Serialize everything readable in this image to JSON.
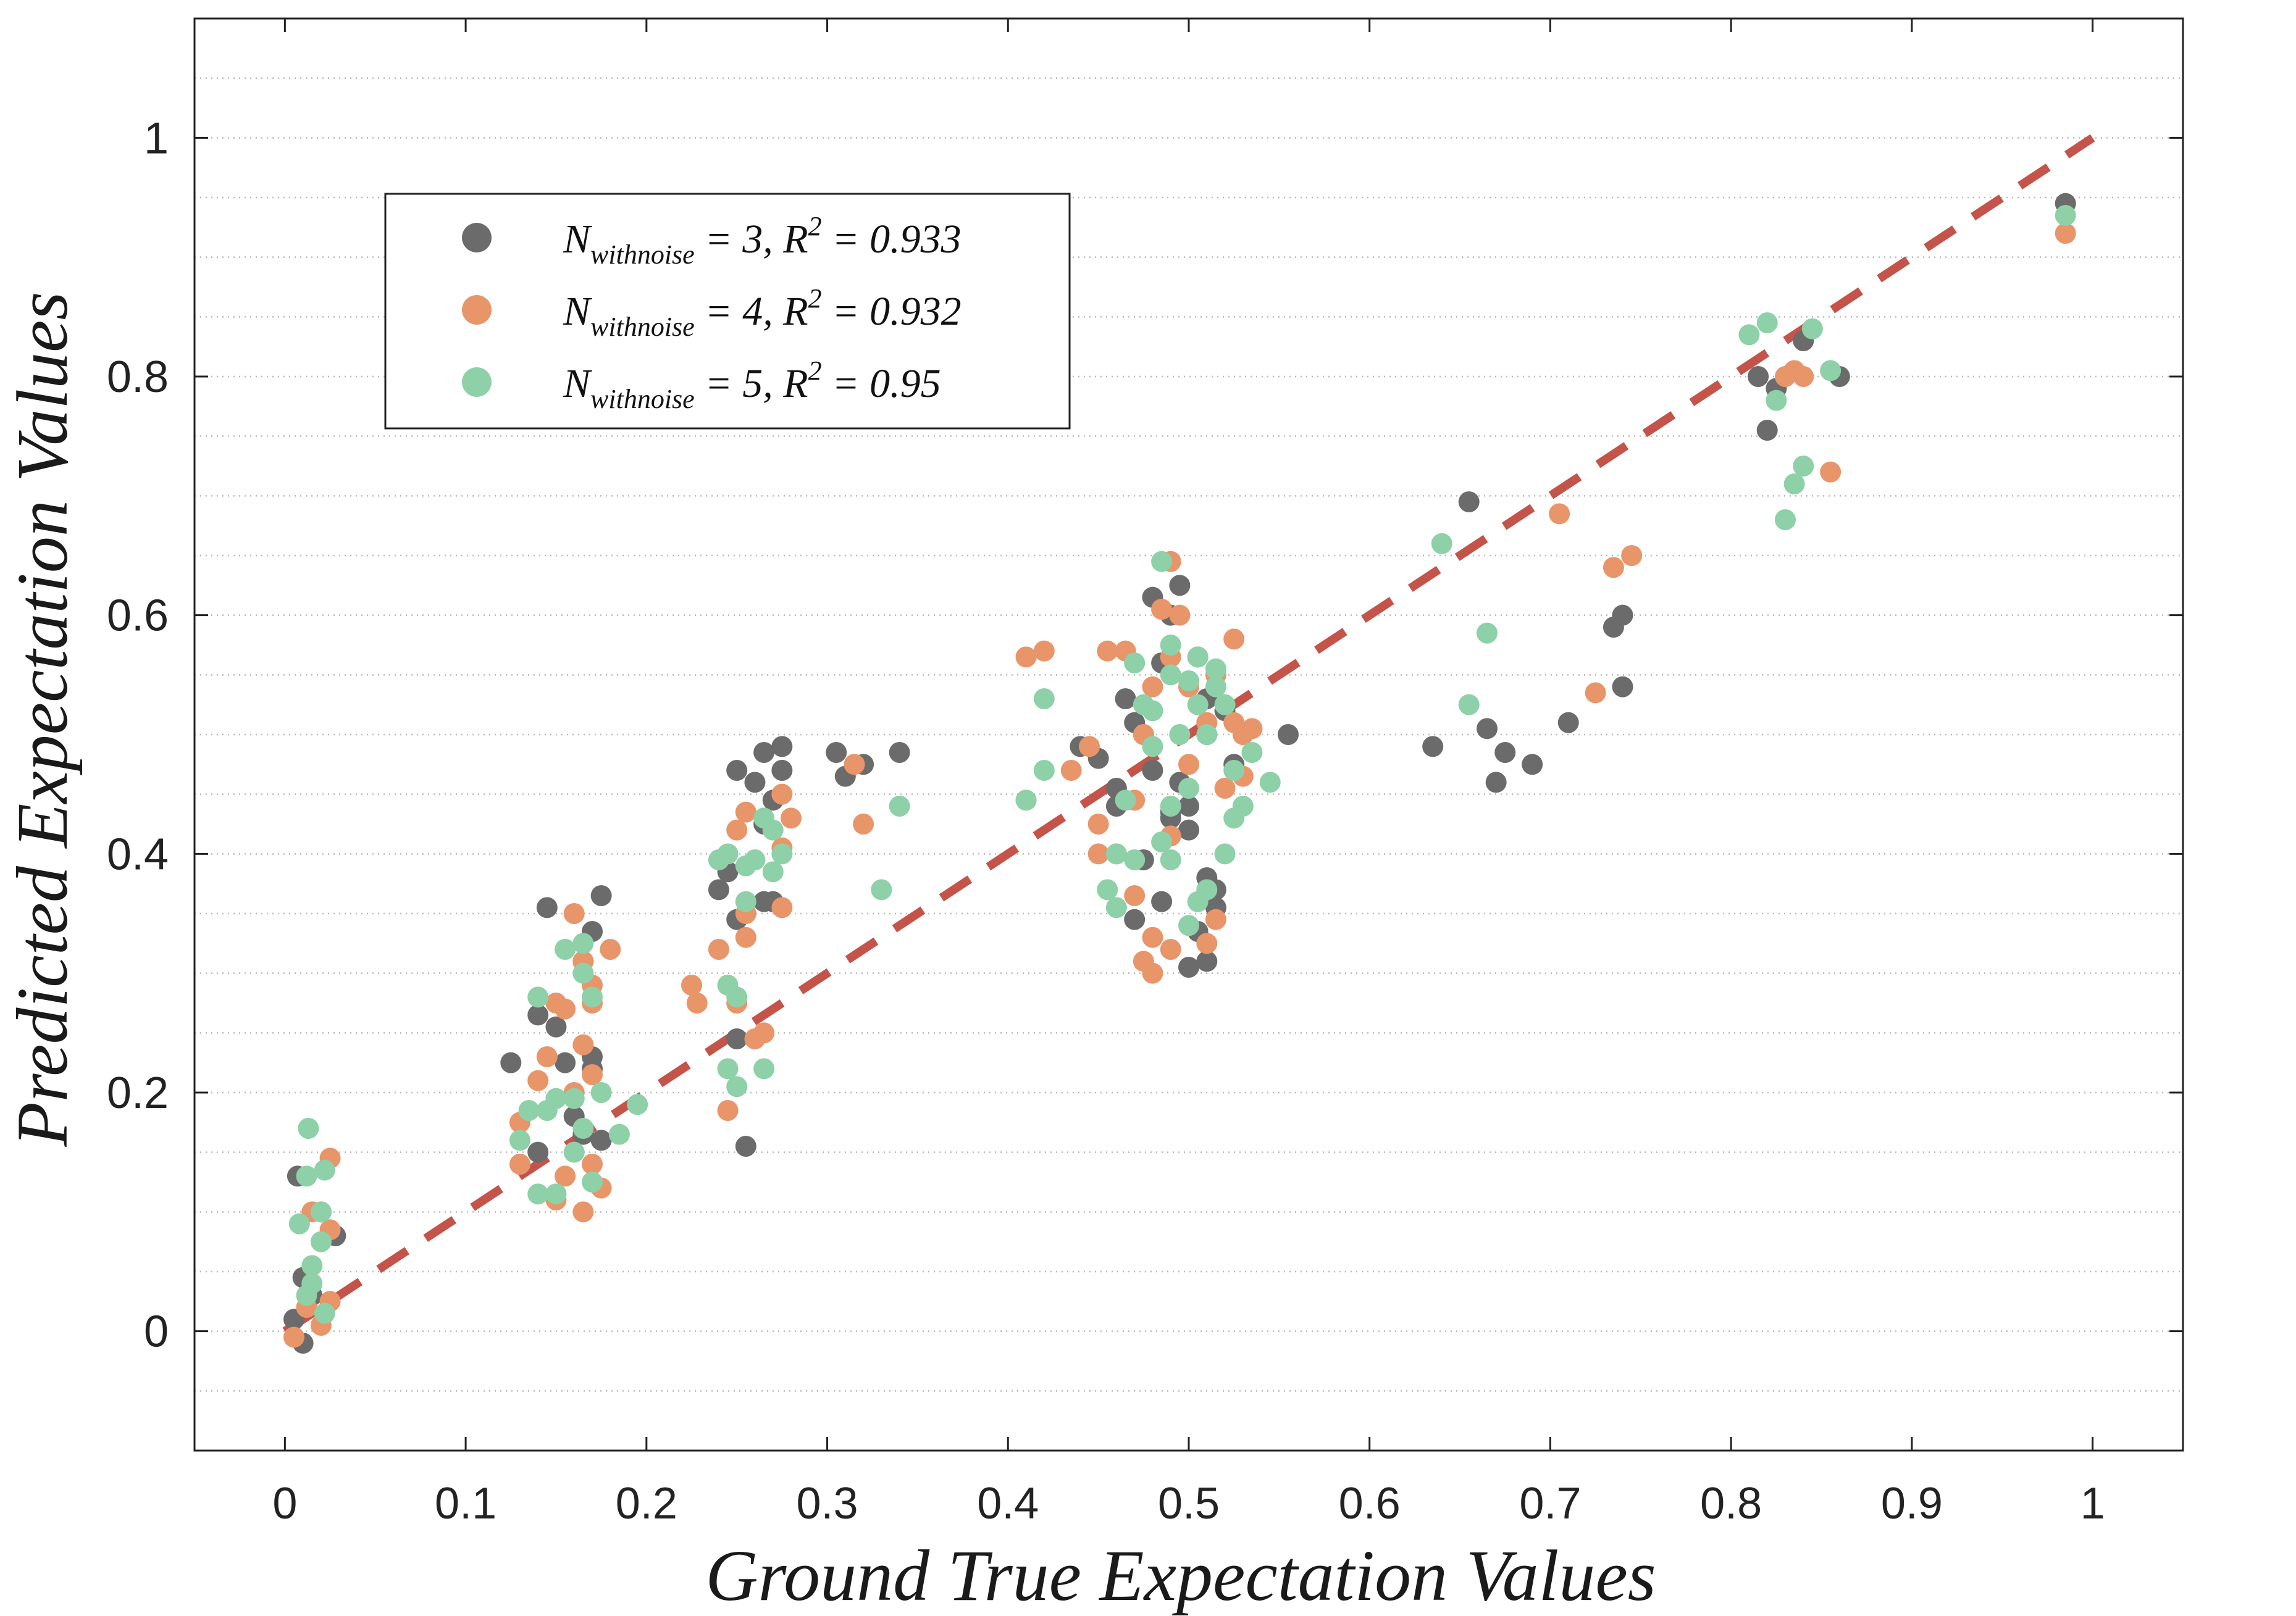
{
  "chart_data": {
    "type": "scatter",
    "title": "",
    "xlabel": "Ground True Expectation Values",
    "ylabel": "Predicted Expectation Values",
    "xlim": [
      -0.05,
      1.05
    ],
    "ylim": [
      -0.1,
      1.1
    ],
    "x_ticks": [
      0,
      0.1,
      0.2,
      0.3,
      0.4,
      0.5,
      0.6,
      0.7,
      0.8,
      0.9,
      1
    ],
    "x_tick_labels": [
      "0",
      "0.1",
      "0.2",
      "0.3",
      "0.4",
      "0.5",
      "0.6",
      "0.7",
      "0.8",
      "0.9",
      "1"
    ],
    "y_ticks": [
      0,
      0.2,
      0.4,
      0.6,
      0.8,
      1
    ],
    "y_tick_labels": [
      "0",
      "0.2",
      "0.4",
      "0.6",
      "0.8",
      "1"
    ],
    "grid": "horizontal dotted",
    "legend_position": "top-left",
    "reference_line": {
      "style": "dashed",
      "color": "#c4544a",
      "from": [
        0,
        0
      ],
      "to": [
        1,
        1
      ]
    },
    "series": [
      {
        "name": "N_withnoise = 3, R^2 = 0.933",
        "legend": {
          "base": "N",
          "subscript": "withnoise",
          "value_text": " = 3, R",
          "sup": "2",
          "r2_text": " = 0.933"
        },
        "color": "#6b6b6b",
        "points": [
          [
            0.007,
            0.13
          ],
          [
            0.01,
            0.045
          ],
          [
            0.01,
            -0.01
          ],
          [
            0.005,
            0.01
          ],
          [
            0.015,
            0.03
          ],
          [
            0.028,
            0.08
          ],
          [
            0.02,
            0.1
          ],
          [
            0.125,
            0.225
          ],
          [
            0.145,
            0.355
          ],
          [
            0.14,
            0.265
          ],
          [
            0.15,
            0.255
          ],
          [
            0.155,
            0.225
          ],
          [
            0.17,
            0.335
          ],
          [
            0.175,
            0.365
          ],
          [
            0.165,
            0.31
          ],
          [
            0.17,
            0.23
          ],
          [
            0.17,
            0.22
          ],
          [
            0.16,
            0.18
          ],
          [
            0.175,
            0.16
          ],
          [
            0.14,
            0.15
          ],
          [
            0.165,
            0.165
          ],
          [
            0.24,
            0.37
          ],
          [
            0.245,
            0.385
          ],
          [
            0.25,
            0.345
          ],
          [
            0.25,
            0.47
          ],
          [
            0.26,
            0.46
          ],
          [
            0.265,
            0.485
          ],
          [
            0.275,
            0.49
          ],
          [
            0.275,
            0.47
          ],
          [
            0.27,
            0.445
          ],
          [
            0.265,
            0.425
          ],
          [
            0.27,
            0.36
          ],
          [
            0.265,
            0.36
          ],
          [
            0.25,
            0.245
          ],
          [
            0.255,
            0.155
          ],
          [
            0.305,
            0.485
          ],
          [
            0.31,
            0.465
          ],
          [
            0.32,
            0.475
          ],
          [
            0.34,
            0.485
          ],
          [
            0.44,
            0.49
          ],
          [
            0.45,
            0.48
          ],
          [
            0.465,
            0.53
          ],
          [
            0.47,
            0.51
          ],
          [
            0.48,
            0.615
          ],
          [
            0.49,
            0.6
          ],
          [
            0.495,
            0.625
          ],
          [
            0.485,
            0.56
          ],
          [
            0.505,
            0.565
          ],
          [
            0.51,
            0.53
          ],
          [
            0.52,
            0.52
          ],
          [
            0.525,
            0.475
          ],
          [
            0.51,
            0.5
          ],
          [
            0.5,
            0.44
          ],
          [
            0.49,
            0.43
          ],
          [
            0.495,
            0.46
          ],
          [
            0.48,
            0.47
          ],
          [
            0.475,
            0.395
          ],
          [
            0.485,
            0.36
          ],
          [
            0.51,
            0.38
          ],
          [
            0.515,
            0.37
          ],
          [
            0.515,
            0.355
          ],
          [
            0.505,
            0.335
          ],
          [
            0.5,
            0.305
          ],
          [
            0.51,
            0.31
          ],
          [
            0.46,
            0.455
          ],
          [
            0.47,
            0.345
          ],
          [
            0.475,
            0.5
          ],
          [
            0.555,
            0.5
          ],
          [
            0.49,
            0.435
          ],
          [
            0.5,
            0.42
          ],
          [
            0.46,
            0.44
          ],
          [
            0.635,
            0.49
          ],
          [
            0.655,
            0.695
          ],
          [
            0.665,
            0.505
          ],
          [
            0.67,
            0.46
          ],
          [
            0.675,
            0.485
          ],
          [
            0.69,
            0.475
          ],
          [
            0.71,
            0.51
          ],
          [
            0.735,
            0.59
          ],
          [
            0.74,
            0.6
          ],
          [
            0.74,
            0.54
          ],
          [
            0.815,
            0.8
          ],
          [
            0.82,
            0.755
          ],
          [
            0.825,
            0.79
          ],
          [
            0.84,
            0.83
          ],
          [
            0.86,
            0.8
          ],
          [
            0.985,
            0.945
          ]
        ]
      },
      {
        "name": "N_withnoise = 4, R^2 = 0.932",
        "legend": {
          "base": "N",
          "subscript": "withnoise",
          "value_text": " = 4, R",
          "sup": "2",
          "r2_text": " = 0.932"
        },
        "color": "#e8956a",
        "points": [
          [
            0.005,
            -0.005
          ],
          [
            0.012,
            0.02
          ],
          [
            0.02,
            0.005
          ],
          [
            0.025,
            0.025
          ],
          [
            0.025,
            0.145
          ],
          [
            0.025,
            0.085
          ],
          [
            0.015,
            0.1
          ],
          [
            0.13,
            0.175
          ],
          [
            0.13,
            0.14
          ],
          [
            0.14,
            0.21
          ],
          [
            0.145,
            0.23
          ],
          [
            0.15,
            0.275
          ],
          [
            0.155,
            0.27
          ],
          [
            0.16,
            0.35
          ],
          [
            0.165,
            0.31
          ],
          [
            0.17,
            0.29
          ],
          [
            0.17,
            0.275
          ],
          [
            0.165,
            0.24
          ],
          [
            0.17,
            0.215
          ],
          [
            0.16,
            0.2
          ],
          [
            0.165,
            0.1
          ],
          [
            0.15,
            0.11
          ],
          [
            0.155,
            0.13
          ],
          [
            0.17,
            0.14
          ],
          [
            0.175,
            0.12
          ],
          [
            0.18,
            0.32
          ],
          [
            0.225,
            0.29
          ],
          [
            0.228,
            0.275
          ],
          [
            0.24,
            0.32
          ],
          [
            0.245,
            0.185
          ],
          [
            0.25,
            0.275
          ],
          [
            0.25,
            0.42
          ],
          [
            0.255,
            0.435
          ],
          [
            0.255,
            0.33
          ],
          [
            0.255,
            0.35
          ],
          [
            0.26,
            0.245
          ],
          [
            0.265,
            0.25
          ],
          [
            0.275,
            0.45
          ],
          [
            0.28,
            0.43
          ],
          [
            0.275,
            0.405
          ],
          [
            0.275,
            0.355
          ],
          [
            0.315,
            0.475
          ],
          [
            0.32,
            0.425
          ],
          [
            0.41,
            0.565
          ],
          [
            0.42,
            0.57
          ],
          [
            0.41,
            0.445
          ],
          [
            0.435,
            0.47
          ],
          [
            0.445,
            0.49
          ],
          [
            0.45,
            0.425
          ],
          [
            0.455,
            0.57
          ],
          [
            0.465,
            0.57
          ],
          [
            0.475,
            0.5
          ],
          [
            0.48,
            0.54
          ],
          [
            0.485,
            0.605
          ],
          [
            0.49,
            0.645
          ],
          [
            0.495,
            0.6
          ],
          [
            0.49,
            0.565
          ],
          [
            0.5,
            0.54
          ],
          [
            0.51,
            0.51
          ],
          [
            0.515,
            0.55
          ],
          [
            0.525,
            0.58
          ],
          [
            0.525,
            0.51
          ],
          [
            0.53,
            0.5
          ],
          [
            0.535,
            0.505
          ],
          [
            0.52,
            0.455
          ],
          [
            0.53,
            0.465
          ],
          [
            0.5,
            0.475
          ],
          [
            0.47,
            0.365
          ],
          [
            0.475,
            0.31
          ],
          [
            0.48,
            0.3
          ],
          [
            0.49,
            0.32
          ],
          [
            0.48,
            0.33
          ],
          [
            0.51,
            0.325
          ],
          [
            0.515,
            0.345
          ],
          [
            0.49,
            0.415
          ],
          [
            0.46,
            0.4
          ],
          [
            0.45,
            0.4
          ],
          [
            0.47,
            0.445
          ],
          [
            0.705,
            0.685
          ],
          [
            0.725,
            0.535
          ],
          [
            0.735,
            0.64
          ],
          [
            0.745,
            0.65
          ],
          [
            0.83,
            0.8
          ],
          [
            0.835,
            0.805
          ],
          [
            0.84,
            0.8
          ],
          [
            0.855,
            0.72
          ],
          [
            0.985,
            0.92
          ]
        ]
      },
      {
        "name": "N_withnoise = 5, R^2 = 0.95",
        "legend": {
          "base": "N",
          "subscript": "withnoise",
          "value_text": " = 5, R",
          "sup": "2",
          "r2_text": " = 0.95"
        },
        "color": "#8ed0a8",
        "points": [
          [
            0.013,
            0.17
          ],
          [
            0.012,
            0.13
          ],
          [
            0.008,
            0.09
          ],
          [
            0.02,
            0.1
          ],
          [
            0.022,
            0.135
          ],
          [
            0.02,
            0.075
          ],
          [
            0.015,
            0.055
          ],
          [
            0.015,
            0.04
          ],
          [
            0.012,
            0.03
          ],
          [
            0.022,
            0.015
          ],
          [
            0.13,
            0.16
          ],
          [
            0.135,
            0.185
          ],
          [
            0.14,
            0.28
          ],
          [
            0.145,
            0.185
          ],
          [
            0.15,
            0.195
          ],
          [
            0.155,
            0.32
          ],
          [
            0.16,
            0.195
          ],
          [
            0.165,
            0.3
          ],
          [
            0.165,
            0.325
          ],
          [
            0.17,
            0.28
          ],
          [
            0.165,
            0.17
          ],
          [
            0.175,
            0.2
          ],
          [
            0.16,
            0.15
          ],
          [
            0.14,
            0.115
          ],
          [
            0.15,
            0.115
          ],
          [
            0.17,
            0.125
          ],
          [
            0.185,
            0.165
          ],
          [
            0.195,
            0.19
          ],
          [
            0.24,
            0.395
          ],
          [
            0.245,
            0.4
          ],
          [
            0.255,
            0.36
          ],
          [
            0.255,
            0.39
          ],
          [
            0.26,
            0.395
          ],
          [
            0.265,
            0.43
          ],
          [
            0.27,
            0.42
          ],
          [
            0.27,
            0.385
          ],
          [
            0.275,
            0.4
          ],
          [
            0.245,
            0.29
          ],
          [
            0.25,
            0.28
          ],
          [
            0.245,
            0.22
          ],
          [
            0.25,
            0.205
          ],
          [
            0.265,
            0.22
          ],
          [
            0.33,
            0.37
          ],
          [
            0.34,
            0.44
          ],
          [
            0.41,
            0.445
          ],
          [
            0.42,
            0.47
          ],
          [
            0.42,
            0.53
          ],
          [
            0.455,
            0.37
          ],
          [
            0.46,
            0.355
          ],
          [
            0.46,
            0.4
          ],
          [
            0.465,
            0.445
          ],
          [
            0.47,
            0.395
          ],
          [
            0.48,
            0.52
          ],
          [
            0.485,
            0.645
          ],
          [
            0.49,
            0.575
          ],
          [
            0.49,
            0.55
          ],
          [
            0.495,
            0.5
          ],
          [
            0.5,
            0.545
          ],
          [
            0.505,
            0.525
          ],
          [
            0.51,
            0.5
          ],
          [
            0.515,
            0.54
          ],
          [
            0.515,
            0.555
          ],
          [
            0.505,
            0.565
          ],
          [
            0.52,
            0.525
          ],
          [
            0.52,
            0.4
          ],
          [
            0.525,
            0.47
          ],
          [
            0.525,
            0.43
          ],
          [
            0.53,
            0.44
          ],
          [
            0.535,
            0.485
          ],
          [
            0.545,
            0.46
          ],
          [
            0.5,
            0.455
          ],
          [
            0.49,
            0.44
          ],
          [
            0.485,
            0.41
          ],
          [
            0.49,
            0.395
          ],
          [
            0.51,
            0.37
          ],
          [
            0.505,
            0.36
          ],
          [
            0.5,
            0.34
          ],
          [
            0.475,
            0.525
          ],
          [
            0.47,
            0.56
          ],
          [
            0.48,
            0.49
          ],
          [
            0.64,
            0.66
          ],
          [
            0.655,
            0.525
          ],
          [
            0.665,
            0.585
          ],
          [
            0.81,
            0.835
          ],
          [
            0.82,
            0.845
          ],
          [
            0.825,
            0.78
          ],
          [
            0.83,
            0.68
          ],
          [
            0.835,
            0.71
          ],
          [
            0.84,
            0.725
          ],
          [
            0.845,
            0.84
          ],
          [
            0.855,
            0.805
          ],
          [
            0.985,
            0.935
          ]
        ]
      }
    ]
  }
}
